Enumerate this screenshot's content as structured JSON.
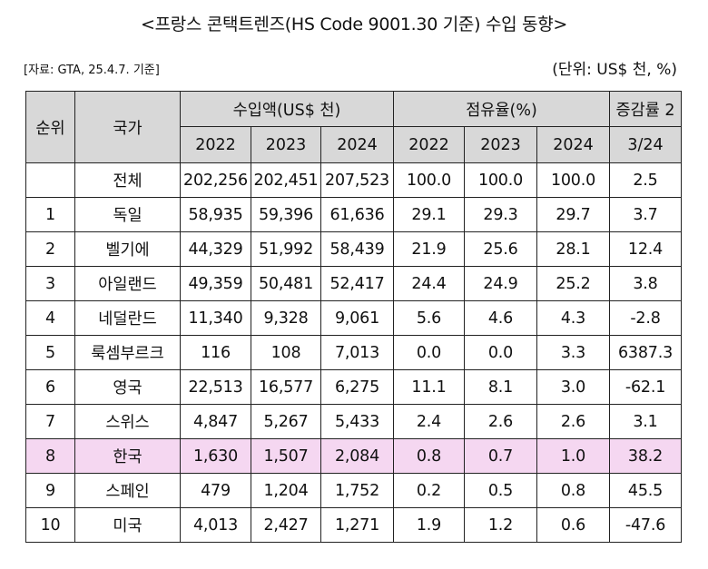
{
  "title": "<프랑스 콘택트렌즈(HS Code 9001.30 기준) 수입 동향>",
  "source": "[자료: GTA, 25.4.7. 기준]",
  "unit": "(단위: US$ 천, %)",
  "table": {
    "headers": {
      "rank": "순위",
      "country": "국가",
      "import_value": "수입액(US$ 천)",
      "share": "점유율(%)",
      "growth": "증감률 2",
      "growth_sub": "3/24",
      "years": [
        "2022",
        "2023",
        "2024"
      ]
    },
    "rows": [
      {
        "rank": "",
        "country": "전체",
        "import": [
          "202,256",
          "202,451",
          "207,523"
        ],
        "share": [
          "100.0",
          "100.0",
          "100.0"
        ],
        "growth": "2.5"
      },
      {
        "rank": "1",
        "country": "독일",
        "import": [
          "58,935",
          "59,396",
          "61,636"
        ],
        "share": [
          "29.1",
          "29.3",
          "29.7"
        ],
        "growth": "3.7"
      },
      {
        "rank": "2",
        "country": "벨기에",
        "import": [
          "44,329",
          "51,992",
          "58,439"
        ],
        "share": [
          "21.9",
          "25.6",
          "28.1"
        ],
        "growth": "12.4"
      },
      {
        "rank": "3",
        "country": "아일랜드",
        "import": [
          "49,359",
          "50,481",
          "52,417"
        ],
        "share": [
          "24.4",
          "24.9",
          "25.2"
        ],
        "growth": "3.8"
      },
      {
        "rank": "4",
        "country": "네덜란드",
        "import": [
          "11,340",
          "9,328",
          "9,061"
        ],
        "share": [
          "5.6",
          "4.6",
          "4.3"
        ],
        "growth": "-2.8"
      },
      {
        "rank": "5",
        "country": "룩셈부르크",
        "import": [
          "116",
          "108",
          "7,013"
        ],
        "share": [
          "0.0",
          "0.0",
          "3.3"
        ],
        "growth": "6387.3"
      },
      {
        "rank": "6",
        "country": "영국",
        "import": [
          "22,513",
          "16,577",
          "6,275"
        ],
        "share": [
          "11.1",
          "8.1",
          "3.0"
        ],
        "growth": "-62.1"
      },
      {
        "rank": "7",
        "country": "스위스",
        "import": [
          "4,847",
          "5,267",
          "5,433"
        ],
        "share": [
          "2.4",
          "2.6",
          "2.6"
        ],
        "growth": "3.1"
      },
      {
        "rank": "8",
        "country": "한국",
        "import": [
          "1,630",
          "1,507",
          "2,084"
        ],
        "share": [
          "0.8",
          "0.7",
          "1.0"
        ],
        "growth": "38.2",
        "highlight": true
      },
      {
        "rank": "9",
        "country": "스페인",
        "import": [
          "479",
          "1,204",
          "1,752"
        ],
        "share": [
          "0.2",
          "0.5",
          "0.8"
        ],
        "growth": "45.5"
      },
      {
        "rank": "10",
        "country": "미국",
        "import": [
          "4,013",
          "2,427",
          "1,271"
        ],
        "share": [
          "1.9",
          "1.2",
          "0.6"
        ],
        "growth": "-47.6"
      }
    ]
  },
  "colors": {
    "header_bg": "#d8d8d8",
    "highlight_bg": "#f5d7f1",
    "border": "#222222"
  }
}
